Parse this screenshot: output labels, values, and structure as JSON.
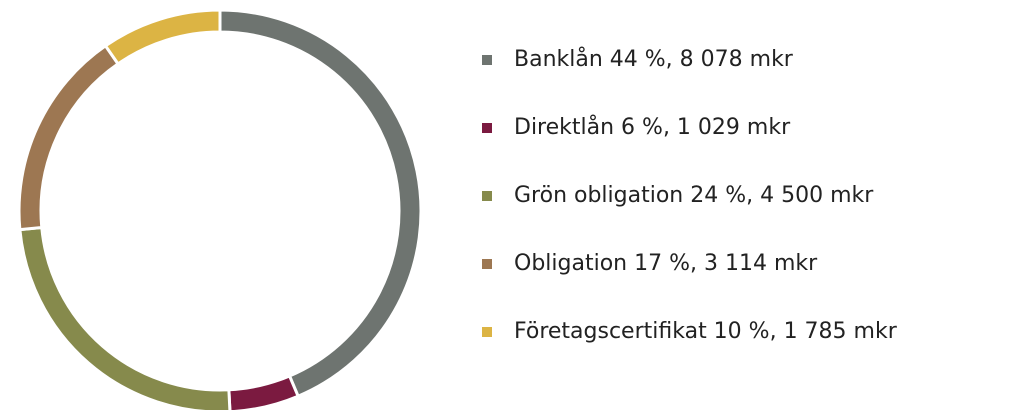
{
  "chart_data": {
    "type": "donut",
    "categories": [
      "Banklån 44 %, 8 078 mkr",
      "Direktlån 6 %, 1 029 mkr",
      "Grön obligation 24 %, 4 500 mkr",
      "Obligation 17 %, 3 114 mkr",
      "Företagscertifikat 10 %, 1 785 mkr"
    ],
    "values": [
      8078,
      1029,
      4500,
      3114,
      1785
    ],
    "colors": [
      "#6e7470",
      "#7b1a40",
      "#868a4c",
      "#9d7752",
      "#dcb444"
    ],
    "legend": "right"
  }
}
